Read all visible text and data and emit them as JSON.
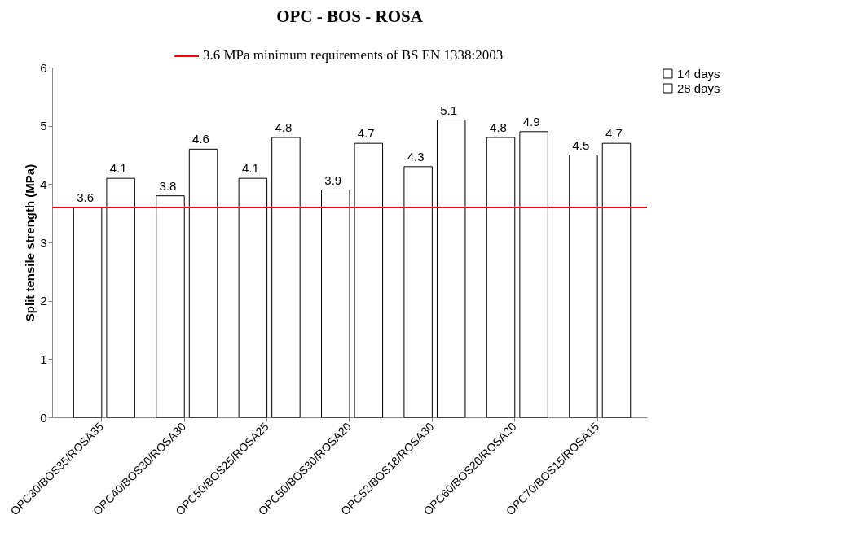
{
  "chart_data": {
    "type": "bar",
    "title": "OPC - BOS - ROSA",
    "ylabel": "Split tensile strength (MPa)",
    "categories": [
      "OPC30/BOS35/ROSA35",
      "OPC40/BOS30/ROSA30",
      "OPC50/BOS25/ROSA25",
      "OPC50/BOS30/ROSA20",
      "OPC52/BOS18/ROSA30",
      "OPC60/BOS20/ROSA20",
      "OPC70/BOS15/ROSA15"
    ],
    "series": [
      {
        "name": "14 days",
        "color": "#ffffff",
        "values": [
          3.6,
          3.8,
          4.1,
          3.9,
          4.3,
          4.8,
          4.5
        ]
      },
      {
        "name": "28 days",
        "color": "#ffffff",
        "values": [
          4.1,
          4.6,
          4.8,
          4.7,
          5.1,
          4.9,
          4.7
        ]
      }
    ],
    "ylim": [
      0,
      6
    ],
    "yticks": [
      0,
      1,
      2,
      3,
      4,
      5,
      6
    ],
    "grid": false,
    "legend": "right",
    "data_labels": true,
    "ref_lines": [
      {
        "axis": "y",
        "value": 3.6,
        "label": "3.6 MPa minimum requirements of BS EN 1338:2003",
        "color": "#ff0000"
      }
    ]
  }
}
